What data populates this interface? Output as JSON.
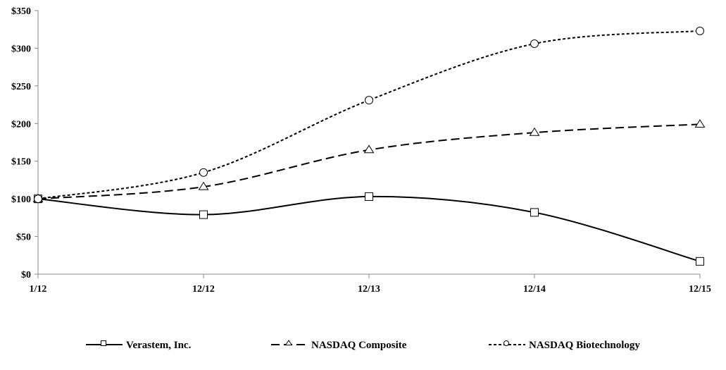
{
  "chart_data": {
    "type": "line",
    "title": "",
    "xlabel": "",
    "ylabel": "",
    "categories": [
      "1/12",
      "12/12",
      "12/13",
      "12/14",
      "12/15"
    ],
    "ylim": [
      0,
      350
    ],
    "yticks": [
      0,
      50,
      100,
      150,
      200,
      250,
      300,
      350
    ],
    "ytick_labels": [
      "$0",
      "$50",
      "$100",
      "$150",
      "$200",
      "$250",
      "$300",
      "$350"
    ],
    "grid": false,
    "legend_position": "bottom",
    "series": [
      {
        "name": "Verastem, Inc.",
        "values": [
          100,
          79,
          103,
          82,
          17
        ],
        "marker": "square",
        "dash": "solid",
        "color": "#000000"
      },
      {
        "name": "NASDAQ Composite",
        "values": [
          100,
          116,
          165,
          188,
          199
        ],
        "marker": "triangle",
        "dash": "dashed",
        "color": "#000000"
      },
      {
        "name": "NASDAQ Biotechnology",
        "values": [
          100,
          135,
          231,
          306,
          323
        ],
        "marker": "circle",
        "dash": "dotted",
        "color": "#000000"
      }
    ]
  }
}
